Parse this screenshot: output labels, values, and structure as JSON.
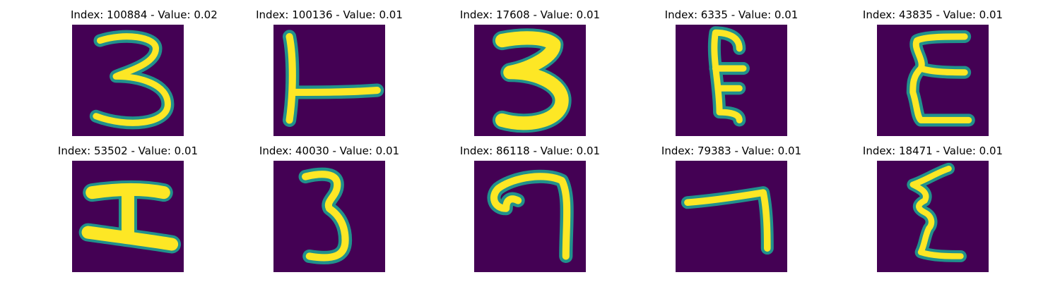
{
  "figure": {
    "background": "#ffffff",
    "colormap": {
      "low": "#440154",
      "mid": "#21918c",
      "high": "#fde725"
    }
  },
  "panels": [
    {
      "title": "Index: 100884 - Value: 0.02",
      "index": 100884,
      "value": 0.02,
      "glyph": "3"
    },
    {
      "title": "Index: 100136 - Value: 0.01",
      "index": 100136,
      "value": 0.01,
      "glyph": "L"
    },
    {
      "title": "Index: 17608 - Value: 0.01",
      "index": 17608,
      "value": 0.01,
      "glyph": "3"
    },
    {
      "title": "Index: 6335 - Value: 0.01",
      "index": 6335,
      "value": 0.01,
      "glyph": "E"
    },
    {
      "title": "Index: 43835 - Value: 0.01",
      "index": 43835,
      "value": 0.01,
      "glyph": "E"
    },
    {
      "title": "Index: 53502 - Value: 0.01",
      "index": 53502,
      "value": 0.01,
      "glyph": "I"
    },
    {
      "title": "Index: 40030 - Value: 0.01",
      "index": 40030,
      "value": 0.01,
      "glyph": "3"
    },
    {
      "title": "Index: 86118 - Value: 0.01",
      "index": 86118,
      "value": 0.01,
      "glyph": "7"
    },
    {
      "title": "Index: 79383 - Value: 0.01",
      "index": 79383,
      "value": 0.01,
      "glyph": "7"
    },
    {
      "title": "Index: 18471 - Value: 0.01",
      "index": 18471,
      "value": 0.01,
      "glyph": "Z"
    }
  ]
}
